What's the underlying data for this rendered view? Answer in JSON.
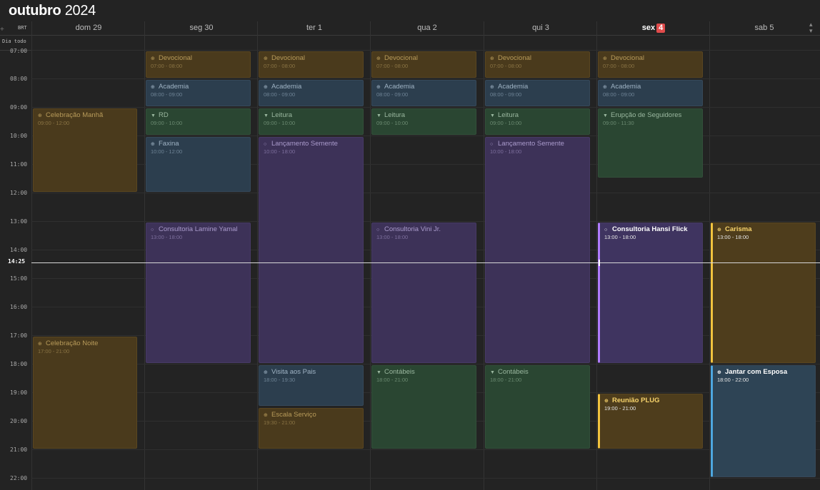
{
  "header": {
    "month": "outubro",
    "year": "2024",
    "timezone": "BRT",
    "allday_label": "Dia todo",
    "today_badge": "4"
  },
  "days": [
    "dom 29",
    "seg 30",
    "ter 1",
    "qua 2",
    "qui 3",
    "sex",
    "sab 5"
  ],
  "hours": [
    "07:00",
    "08:00",
    "09:00",
    "10:00",
    "11:00",
    "12:00",
    "13:00",
    "14:00",
    "15:00",
    "16:00",
    "17:00",
    "18:00",
    "19:00",
    "20:00",
    "21:00",
    "22:00"
  ],
  "now": "14:25",
  "events": {
    "dom_celebracao_manha": {
      "title": "Celebração Manhã",
      "time": "09:00 - 12:00",
      "icon": "globe-icon"
    },
    "dom_celebracao_noite": {
      "title": "Celebração Noite",
      "time": "17:00 - 21:00",
      "icon": "globe-icon"
    },
    "seg_devocional": {
      "title": "Devocional",
      "time": "07:00 - 08:00",
      "icon": "globe-icon"
    },
    "seg_academia": {
      "title": "Academia",
      "time": "08:00 - 09:00",
      "icon": "globe-icon"
    },
    "seg_rd": {
      "title": "RD",
      "time": "09:00 - 10:00",
      "icon": "bookmark-icon"
    },
    "seg_faxina": {
      "title": "Faxina",
      "time": "10:00 - 12:00",
      "icon": "globe-icon"
    },
    "seg_consultoria": {
      "title": "Consultoria Lamine Yamal",
      "time": "13:00 - 18:00",
      "icon": "circle-icon"
    },
    "ter_devocional": {
      "title": "Devocional",
      "time": "07:00 - 08:00",
      "icon": "globe-icon"
    },
    "ter_academia": {
      "title": "Academia",
      "time": "08:00 - 09:00",
      "icon": "globe-icon"
    },
    "ter_leitura": {
      "title": "Leitura",
      "time": "09:00 - 10:00",
      "icon": "bookmark-icon"
    },
    "ter_lancamento": {
      "title": "Lançamento Semente",
      "time": "10:00 - 18:00",
      "icon": "circle-icon"
    },
    "ter_visita": {
      "title": "Visita aos Pais",
      "time": "18:00 - 19:30",
      "icon": "globe-icon"
    },
    "ter_escala": {
      "title": "Escala Serviço",
      "time": "19:30 - 21:00",
      "icon": "globe-icon"
    },
    "qua_devocional": {
      "title": "Devocional",
      "time": "07:00 - 08:00",
      "icon": "globe-icon"
    },
    "qua_academia": {
      "title": "Academia",
      "time": "08:00 - 09:00",
      "icon": "globe-icon"
    },
    "qua_leitura": {
      "title": "Leitura",
      "time": "09:00 - 10:00",
      "icon": "bookmark-icon"
    },
    "qua_consultoria": {
      "title": "Consultoria Vini Jr.",
      "time": "13:00 - 18:00",
      "icon": "circle-icon"
    },
    "qua_contabeis": {
      "title": "Contábeis",
      "time": "18:00 - 21:00",
      "icon": "bookmark-icon"
    },
    "qui_devocional": {
      "title": "Devocional",
      "time": "07:00 - 08:00",
      "icon": "globe-icon"
    },
    "qui_academia": {
      "title": "Academia",
      "time": "08:00 - 09:00",
      "icon": "globe-icon"
    },
    "qui_leitura": {
      "title": "Leitura",
      "time": "09:00 - 10:00",
      "icon": "bookmark-icon"
    },
    "qui_lancamento": {
      "title": "Lançamento Semente",
      "time": "10:00 - 18:00",
      "icon": "circle-icon"
    },
    "qui_contabeis": {
      "title": "Contábeis",
      "time": "18:00 - 21:00",
      "icon": "bookmark-icon"
    },
    "sex_devocional": {
      "title": "Devocional",
      "time": "07:00 - 08:00",
      "icon": "globe-icon"
    },
    "sex_academia": {
      "title": "Academia",
      "time": "08:00 - 09:00",
      "icon": "globe-icon"
    },
    "sex_erupcao": {
      "title": "Erupção de Seguidores",
      "time": "09:00 - 11:30",
      "icon": "bookmark-icon"
    },
    "sex_consultoria": {
      "title": "Consultoria Hansi Flick",
      "time": "13:00 - 18:00",
      "icon": "circle-icon"
    },
    "sex_reuniao": {
      "title": "Reunião PLUG",
      "time": "19:00 - 21:00",
      "icon": "globe-icon"
    },
    "sab_carisma": {
      "title": "Carisma",
      "time": "13:00 - 18:00",
      "icon": "globe-icon"
    },
    "sab_jantar": {
      "title": "Jantar com Esposa",
      "time": "18:00 - 22:00",
      "icon": "globe-icon"
    }
  },
  "colors": {
    "gold": "#4a3a1c",
    "blue": "#2c3e4e",
    "green": "#2a4632",
    "purple": "#3d3258",
    "today_badge": "#e14b4b",
    "accent_gold": "#f2c33e",
    "accent_blue": "#4ea7e0",
    "accent_purple": "#b07cff"
  }
}
